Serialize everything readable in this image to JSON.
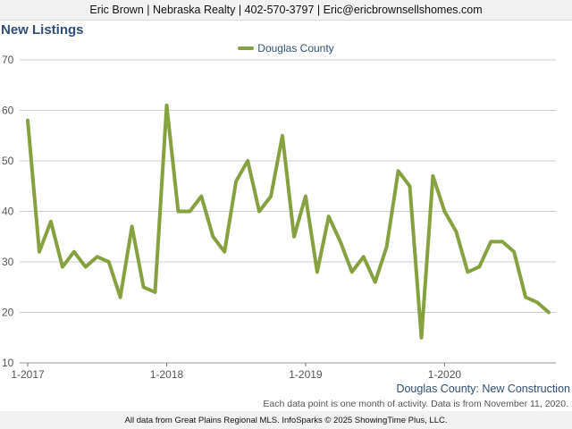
{
  "header": {
    "contact_line": "Eric Brown | Nebraska Realty | 402-570-3797 | Eric@ericbrownsellshomes.com"
  },
  "page_title": "New Listings",
  "footer": {
    "chart_label": "Douglas County: New Construction",
    "note": "Each data point is one month of activity. Data is from November 11, 2020.",
    "source": "All data from Great Plains Regional MLS. InfoSparks © 2025 ShowingTime Plus, LLC."
  },
  "colors": {
    "series": "#86a13f",
    "title": "#2f4f78",
    "grid": "#cccccc"
  },
  "chart_data": {
    "type": "line",
    "title": "",
    "xlabel": "",
    "ylabel": "",
    "ylim": [
      10,
      70
    ],
    "yticks": [
      "10",
      "20",
      "30",
      "40",
      "50",
      "60",
      "70"
    ],
    "xtick_labels": [
      {
        "label": "1-2017",
        "index": 0
      },
      {
        "label": "1-2018",
        "index": 12
      },
      {
        "label": "1-2019",
        "index": 24
      },
      {
        "label": "1-2020",
        "index": 36
      }
    ],
    "grid": true,
    "legend_position": "top-center",
    "x": [
      "2017-01",
      "2017-02",
      "2017-03",
      "2017-04",
      "2017-05",
      "2017-06",
      "2017-07",
      "2017-08",
      "2017-09",
      "2017-10",
      "2017-11",
      "2017-12",
      "2018-01",
      "2018-02",
      "2018-03",
      "2018-04",
      "2018-05",
      "2018-06",
      "2018-07",
      "2018-08",
      "2018-09",
      "2018-10",
      "2018-11",
      "2018-12",
      "2019-01",
      "2019-02",
      "2019-03",
      "2019-04",
      "2019-05",
      "2019-06",
      "2019-07",
      "2019-08",
      "2019-09",
      "2019-10",
      "2019-11",
      "2019-12",
      "2020-01",
      "2020-02",
      "2020-03",
      "2020-04",
      "2020-05",
      "2020-06",
      "2020-07",
      "2020-08",
      "2020-09",
      "2020-10"
    ],
    "series": [
      {
        "name": "Douglas County",
        "values": [
          58,
          32,
          38,
          29,
          32,
          29,
          31,
          30,
          23,
          37,
          25,
          24,
          61,
          40,
          40,
          43,
          35,
          32,
          46,
          50,
          40,
          43,
          55,
          35,
          43,
          28,
          39,
          34,
          28,
          31,
          26,
          33,
          48,
          45,
          15,
          47,
          40,
          36,
          28,
          29,
          34,
          34,
          32,
          23,
          22,
          20
        ]
      }
    ]
  }
}
